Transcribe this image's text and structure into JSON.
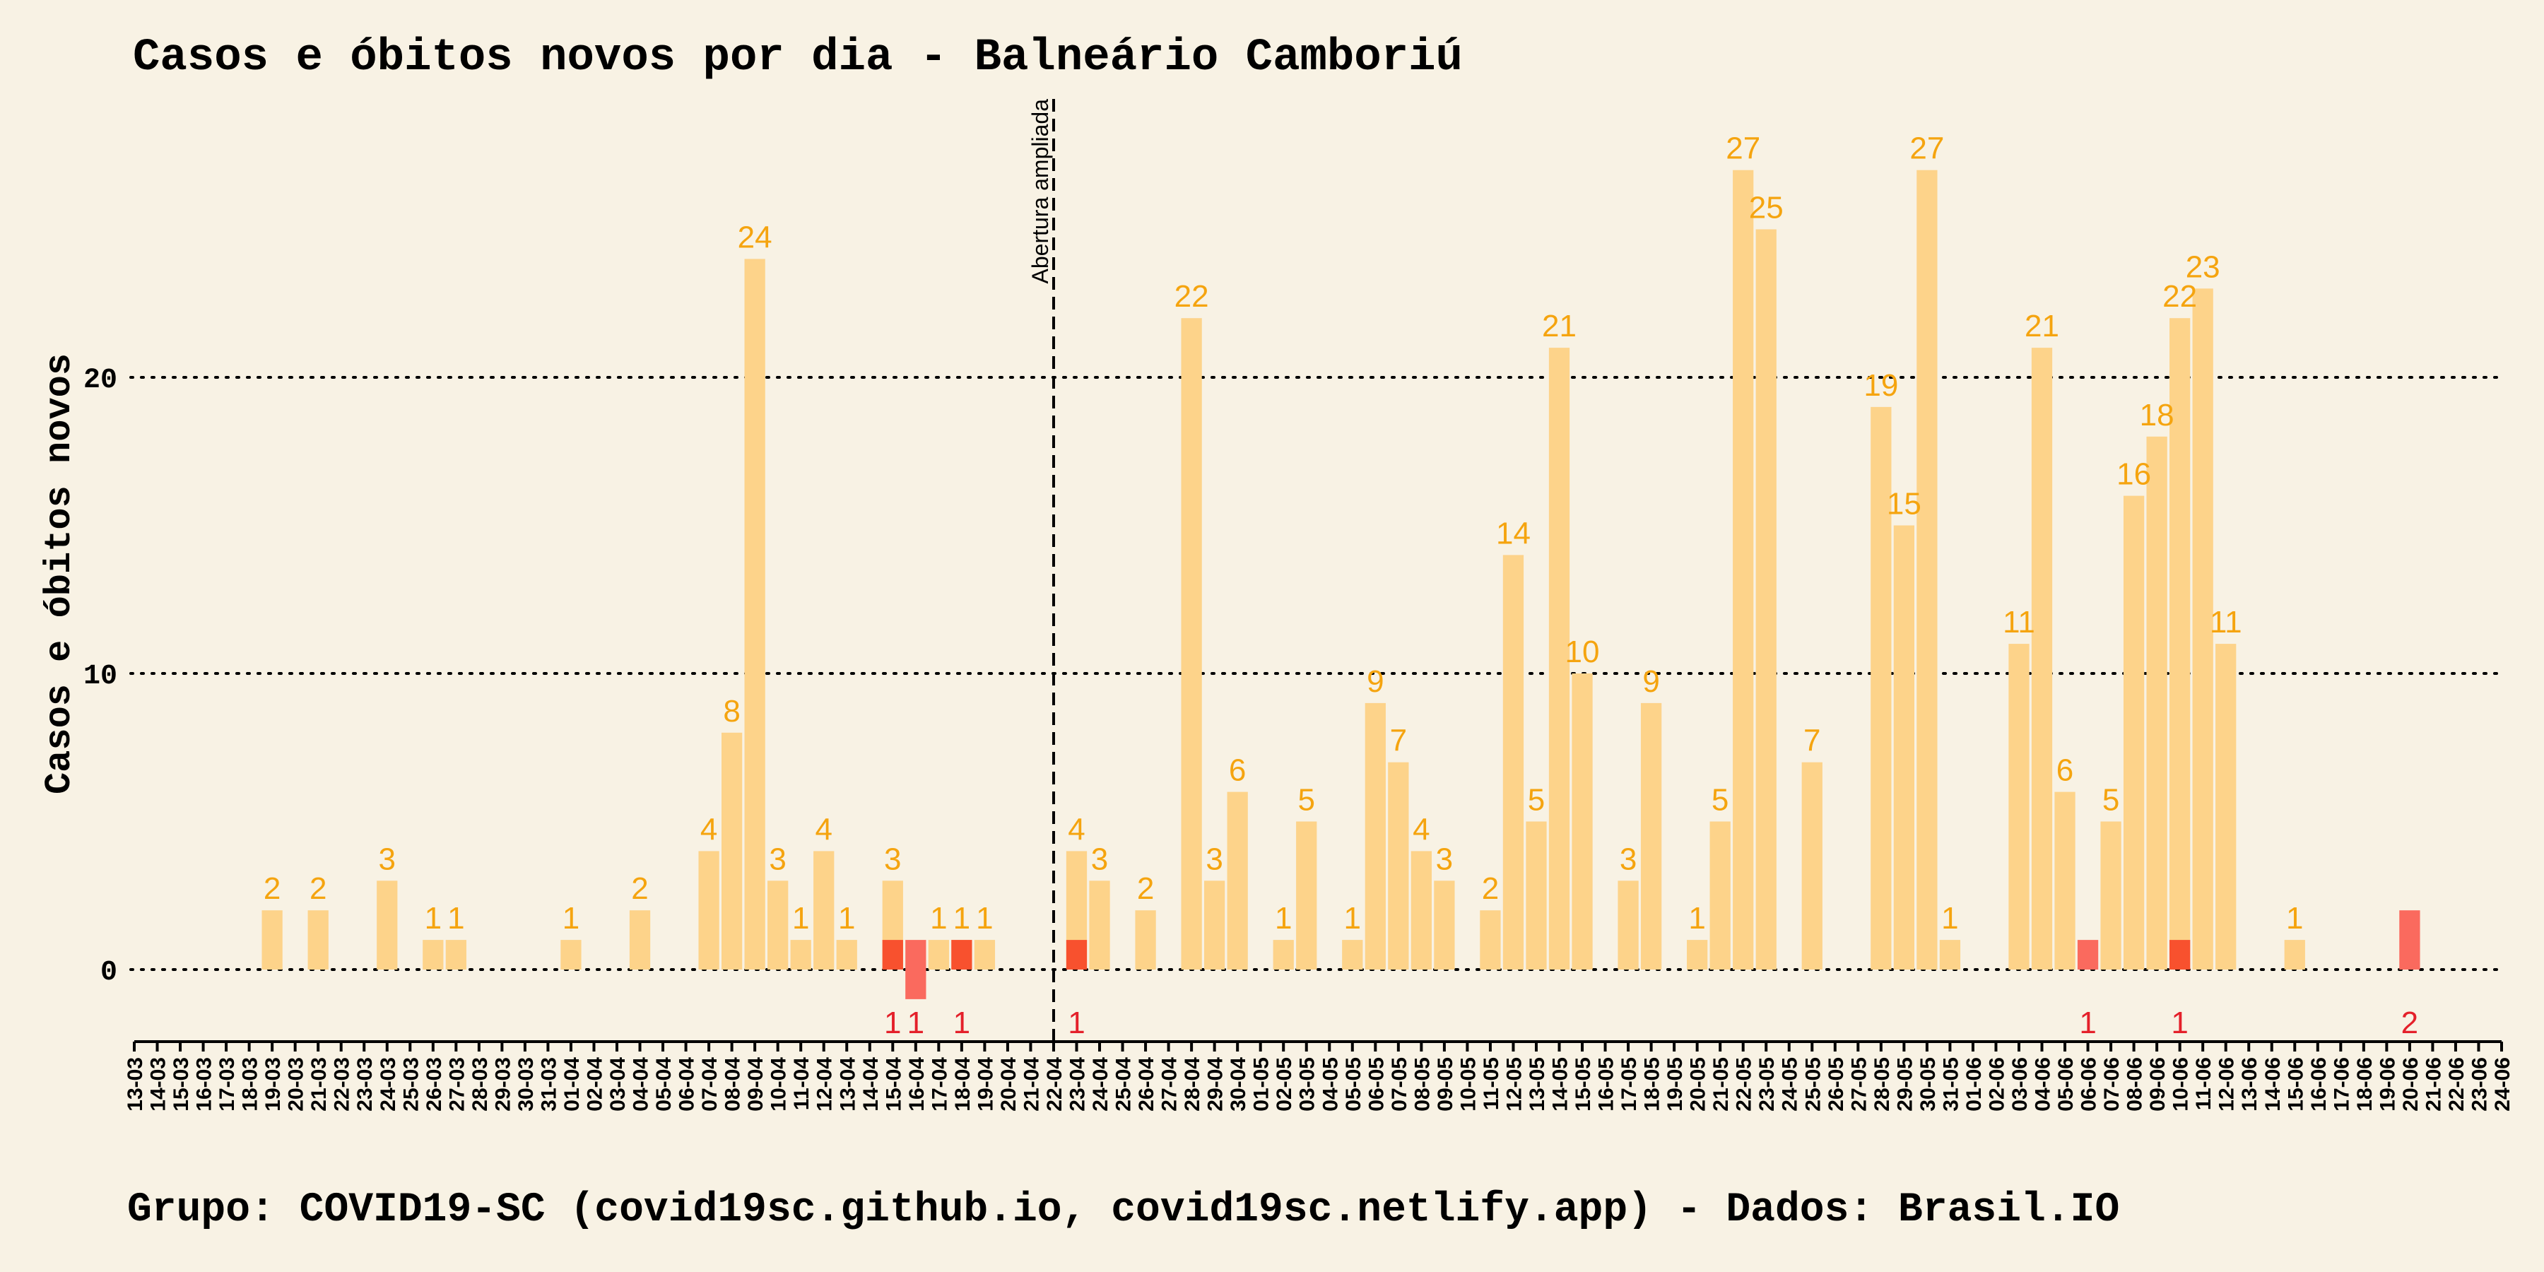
{
  "chart_data": {
    "type": "bar",
    "title": "Casos e óbitos novos por dia -  Balneário Camboriú",
    "ylabel": "Casos e óbitos novos",
    "xlabel": "",
    "caption": "Grupo: COVID19-SC (covid19sc.github.io, covid19sc.netlify.app)   -  Dados: Brasil.IO",
    "annotation": {
      "label": "Abertura ampliada",
      "date": "22-04"
    },
    "ylim": [
      -2.5,
      29
    ],
    "yticks": [
      0,
      10,
      20
    ],
    "grid": "horizontal dotted",
    "categories": [
      "13-03",
      "14-03",
      "15-03",
      "16-03",
      "17-03",
      "18-03",
      "19-03",
      "20-03",
      "21-03",
      "22-03",
      "23-03",
      "24-03",
      "25-03",
      "26-03",
      "27-03",
      "28-03",
      "29-03",
      "30-03",
      "31-03",
      "01-04",
      "02-04",
      "03-04",
      "04-04",
      "05-04",
      "06-04",
      "07-04",
      "08-04",
      "09-04",
      "10-04",
      "11-04",
      "12-04",
      "13-04",
      "14-04",
      "15-04",
      "16-04",
      "17-04",
      "18-04",
      "19-04",
      "20-04",
      "21-04",
      "22-04",
      "23-04",
      "24-04",
      "25-04",
      "26-04",
      "27-04",
      "28-04",
      "29-04",
      "30-04",
      "01-05",
      "02-05",
      "03-05",
      "04-05",
      "05-05",
      "06-05",
      "07-05",
      "08-05",
      "09-05",
      "10-05",
      "11-05",
      "12-05",
      "13-05",
      "14-05",
      "15-05",
      "16-05",
      "17-05",
      "18-05",
      "19-05",
      "20-05",
      "21-05",
      "22-05",
      "23-05",
      "24-05",
      "25-05",
      "26-05",
      "27-05",
      "28-05",
      "29-05",
      "30-05",
      "31-05",
      "01-06",
      "02-06",
      "03-06",
      "04-06",
      "05-06",
      "06-06",
      "07-06",
      "08-06",
      "09-06",
      "10-06",
      "11-06",
      "12-06",
      "13-06",
      "14-06",
      "15-06",
      "16-06",
      "17-06",
      "18-06",
      "19-06",
      "20-06",
      "21-06",
      "22-06",
      "23-06",
      "24-06"
    ],
    "series": [
      {
        "name": "casos",
        "color": "#fdd38a",
        "label_color": "#f5a40f",
        "values": [
          0,
          0,
          0,
          0,
          0,
          0,
          2,
          0,
          2,
          0,
          0,
          3,
          0,
          1,
          1,
          0,
          0,
          0,
          0,
          1,
          0,
          0,
          2,
          0,
          0,
          4,
          8,
          24,
          3,
          1,
          4,
          1,
          0,
          3,
          0,
          1,
          1,
          1,
          0,
          0,
          0,
          4,
          3,
          0,
          2,
          0,
          22,
          3,
          6,
          0,
          1,
          5,
          0,
          1,
          9,
          7,
          4,
          3,
          0,
          2,
          14,
          5,
          21,
          10,
          0,
          3,
          9,
          0,
          1,
          5,
          27,
          25,
          0,
          7,
          0,
          0,
          19,
          15,
          27,
          1,
          0,
          0,
          11,
          21,
          6,
          0,
          5,
          16,
          18,
          22,
          23,
          11,
          0,
          0,
          1,
          0,
          0,
          0,
          0,
          0,
          0,
          0,
          0,
          0
        ]
      },
      {
        "name": "óbitos",
        "color": "#fa6a5e",
        "overlay_color": "#f8512e",
        "label_color": "#e4202a",
        "values": [
          0,
          0,
          0,
          0,
          0,
          0,
          0,
          0,
          0,
          0,
          0,
          0,
          0,
          0,
          0,
          0,
          0,
          0,
          0,
          0,
          0,
          0,
          0,
          0,
          0,
          0,
          0,
          0,
          0,
          0,
          0,
          0,
          0,
          1,
          1,
          0,
          1,
          0,
          0,
          0,
          0,
          1,
          0,
          0,
          0,
          0,
          0,
          0,
          0,
          0,
          0,
          0,
          0,
          0,
          0,
          0,
          0,
          0,
          0,
          0,
          0,
          0,
          0,
          0,
          0,
          0,
          0,
          0,
          0,
          0,
          0,
          0,
          0,
          0,
          0,
          0,
          0,
          0,
          0,
          0,
          0,
          0,
          0,
          0,
          0,
          1,
          0,
          0,
          0,
          1,
          0,
          0,
          0,
          0,
          0,
          0,
          0,
          0,
          0,
          2,
          0,
          0,
          0,
          0
        ]
      }
    ]
  },
  "colors": {
    "background": "#f8f2e4",
    "axis": "#000000",
    "grid": "#000000"
  }
}
